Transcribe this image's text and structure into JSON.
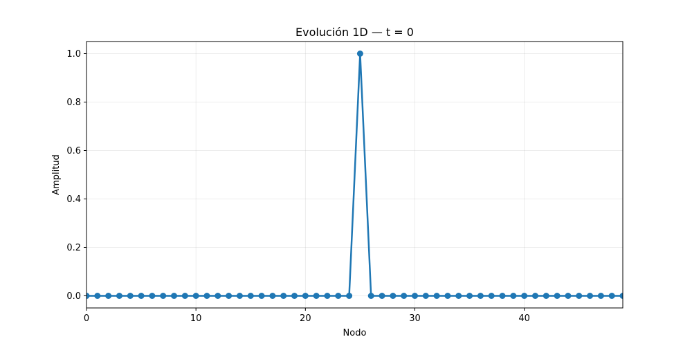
{
  "chart_data": {
    "type": "line",
    "title": "Evolución 1D — t = 0",
    "xlabel": "Nodo",
    "ylabel": "Amplitud",
    "xlim": [
      0,
      49
    ],
    "ylim": [
      -0.05,
      1.05
    ],
    "xticks": [
      0,
      10,
      20,
      30,
      40
    ],
    "xtick_labels": [
      "0",
      "10",
      "20",
      "30",
      "40"
    ],
    "yticks": [
      0.0,
      0.2,
      0.4,
      0.6,
      0.8,
      1.0
    ],
    "ytick_labels": [
      "0.0",
      "0.2",
      "0.4",
      "0.6",
      "0.8",
      "1.0"
    ],
    "grid": true,
    "line_color": "#1f77b4",
    "series": [
      {
        "x": [
          0,
          1,
          2,
          3,
          4,
          5,
          6,
          7,
          8,
          9,
          10,
          11,
          12,
          13,
          14,
          15,
          16,
          17,
          18,
          19,
          20,
          21,
          22,
          23,
          24,
          25,
          26,
          27,
          28,
          29,
          30,
          31,
          32,
          33,
          34,
          35,
          36,
          37,
          38,
          39,
          40,
          41,
          42,
          43,
          44,
          45,
          46,
          47,
          48,
          49
        ],
        "values": [
          0,
          0,
          0,
          0,
          0,
          0,
          0,
          0,
          0,
          0,
          0,
          0,
          0,
          0,
          0,
          0,
          0,
          0,
          0,
          0,
          0,
          0,
          0,
          0,
          0,
          1,
          0,
          0,
          0,
          0,
          0,
          0,
          0,
          0,
          0,
          0,
          0,
          0,
          0,
          0,
          0,
          0,
          0,
          0,
          0,
          0,
          0,
          0,
          0,
          0
        ]
      }
    ]
  }
}
